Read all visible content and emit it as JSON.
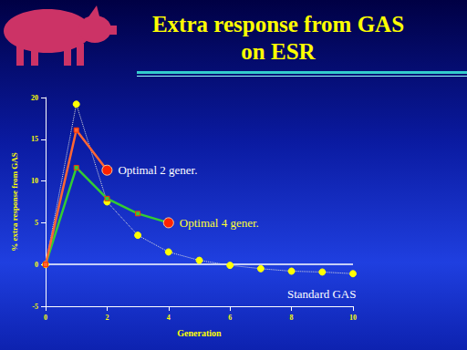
{
  "chart_data": {
    "type": "line",
    "title": "Extra response from GAS\non ESR",
    "x_label": "Generation",
    "y_label": "% extra response from GAS",
    "xlim": [
      0,
      10
    ],
    "xticks": [
      0,
      2,
      4,
      6,
      8,
      10
    ],
    "ylim": [
      -5,
      20
    ],
    "yticks": [
      -5,
      0,
      5,
      10,
      15,
      20
    ],
    "grid": false,
    "series": [
      {
        "name": "Optimal 2 gener.",
        "color": "#ff6633",
        "marker": "square",
        "line_style": "solid",
        "x": [
          0,
          1,
          2
        ],
        "values": [
          0,
          16.1,
          11.3
        ]
      },
      {
        "name": "Optimal 4 gener.",
        "color": "#33cc33",
        "marker": "square",
        "line_style": "solid",
        "x": [
          0,
          1,
          2,
          3,
          4
        ],
        "values": [
          0,
          11.6,
          7.9,
          6.1,
          5.0
        ]
      },
      {
        "name": "Standard GAS",
        "color": "#ffff00",
        "marker": "circle",
        "line_style": "dotted",
        "x": [
          0,
          1,
          2,
          3,
          4,
          5,
          6,
          7,
          8,
          9,
          10
        ],
        "values": [
          0,
          19.2,
          7.5,
          3.5,
          1.5,
          0.5,
          -0.1,
          -0.5,
          -0.8,
          -0.9,
          -1.1
        ]
      }
    ]
  }
}
